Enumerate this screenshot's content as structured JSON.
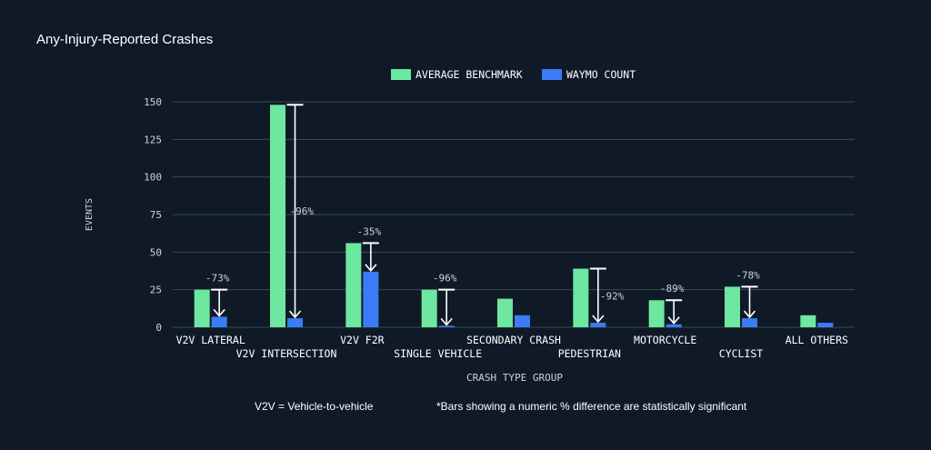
{
  "title": "Any-Injury-Reported Crashes",
  "colors": {
    "benchmark": "#6ee7a0",
    "waymo": "#3b7bf5",
    "grid": "#3a4b57",
    "axis_text": "#c9d3da",
    "arrow": "#ffffff",
    "background": "#0f1a26"
  },
  "chart_data": {
    "type": "bar",
    "title": "Any-Injury-Reported Crashes",
    "xlabel": "CRASH TYPE GROUP",
    "ylabel": "EVENTS",
    "ylim": [
      0,
      150
    ],
    "yticks": [
      0,
      25,
      50,
      75,
      100,
      125,
      150
    ],
    "grid": true,
    "legend_position": "top-center",
    "categories": [
      "V2V LATERAL",
      "V2V INTERSECTION",
      "V2V F2R",
      "SINGLE VEHICLE",
      "SECONDARY CRASH",
      "PEDESTRIAN",
      "MOTORCYCLE",
      "CYCLIST",
      "ALL OTHERS"
    ],
    "series": [
      {
        "name": "AVERAGE BENCHMARK",
        "values": [
          25,
          148,
          56,
          25,
          19,
          39,
          18,
          27,
          8
        ]
      },
      {
        "name": "WAYMO COUNT",
        "values": [
          7,
          6,
          37,
          1,
          8,
          3,
          2,
          6,
          3
        ]
      }
    ],
    "annotations": [
      "-73%",
      "-96%",
      "-35%",
      "-96%",
      "",
      "-92%",
      "-89%",
      "-78%",
      ""
    ]
  },
  "footnotes": {
    "left": "V2V = Vehicle-to-vehicle",
    "right": "*Bars showing a numeric % difference are statistically significant"
  }
}
